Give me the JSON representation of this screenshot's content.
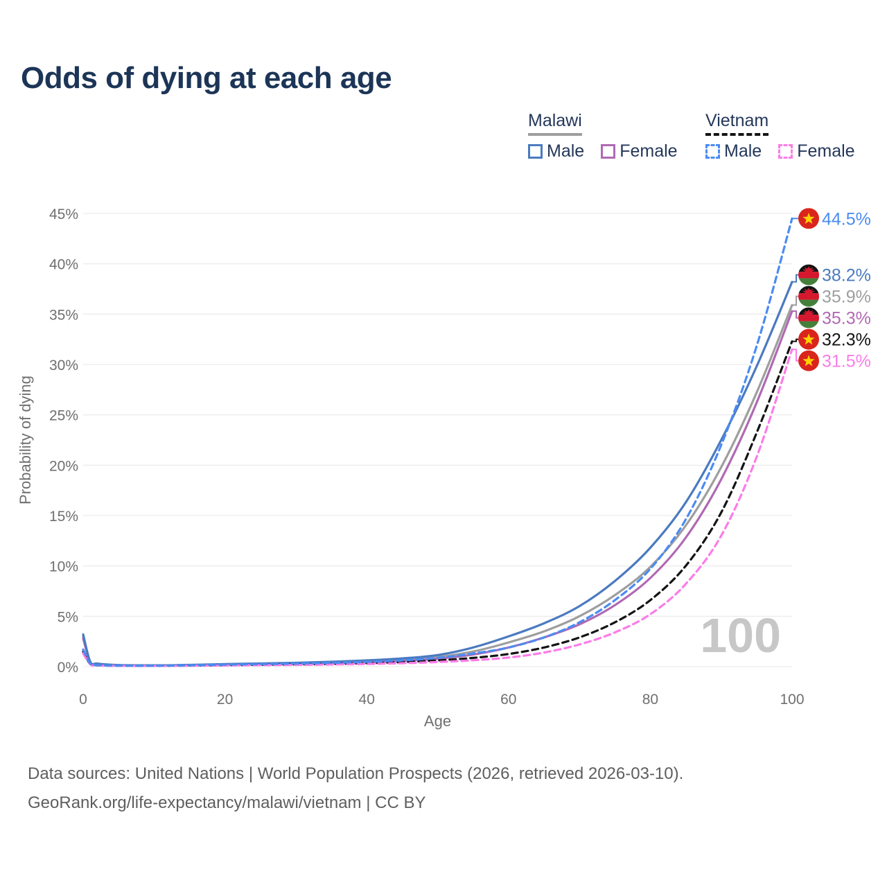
{
  "title": "Odds of dying at each age",
  "watermark": "100",
  "legend": {
    "groups": [
      {
        "country": "Malawi",
        "line_style": "solid",
        "underline_color": "#9e9e9e",
        "items": [
          {
            "label": "Male",
            "color": "#4a7ac0"
          },
          {
            "label": "Female",
            "color": "#b069b3"
          }
        ]
      },
      {
        "country": "Vietnam",
        "line_style": "dashed",
        "underline_color": "#141414",
        "items": [
          {
            "label": "Male",
            "color": "#4b8bf2"
          },
          {
            "label": "Female",
            "color": "#fb7ce8"
          }
        ]
      }
    ]
  },
  "footer": {
    "line1": "Data sources: United Nations | World Population Prospects (2026, retrieved 2026-03-10).",
    "line2": "GeoRank.org/life-expectancy/malawi/vietnam | CC BY"
  },
  "chart_data": {
    "type": "line",
    "title": "Odds of dying at each age",
    "xlabel": "Age",
    "ylabel": "Probability of dying",
    "xlim": [
      0,
      100
    ],
    "ylim": [
      0,
      45
    ],
    "x_ticks": [
      0,
      20,
      40,
      60,
      80,
      100
    ],
    "y_ticks": [
      0,
      5,
      10,
      15,
      20,
      25,
      30,
      35,
      40,
      45
    ],
    "y_tick_suffix": "%",
    "grid": true,
    "legend_position": "top-right",
    "x": [
      0,
      1,
      2,
      5,
      10,
      15,
      20,
      25,
      30,
      35,
      40,
      45,
      50,
      55,
      60,
      65,
      70,
      75,
      80,
      85,
      90,
      95,
      100
    ],
    "series": [
      {
        "name": "Malawi Both sexes",
        "country": "Malawi",
        "sex": "Both",
        "color": "#9e9e9e",
        "dash": "solid",
        "flag": "malawi",
        "end_label": "35.9%",
        "values": [
          3.0,
          0.46,
          0.27,
          0.14,
          0.11,
          0.14,
          0.21,
          0.27,
          0.33,
          0.41,
          0.52,
          0.68,
          0.95,
          1.5,
          2.4,
          3.5,
          5.0,
          7.1,
          9.9,
          14.0,
          19.8,
          27.2,
          35.9
        ]
      },
      {
        "name": "Malawi Female",
        "country": "Malawi",
        "sex": "Female",
        "color": "#b069b3",
        "dash": "solid",
        "flag": "malawi",
        "end_label": "35.3%",
        "values": [
          2.8,
          0.43,
          0.25,
          0.13,
          0.1,
          0.12,
          0.18,
          0.23,
          0.28,
          0.35,
          0.44,
          0.57,
          0.78,
          1.2,
          1.9,
          2.9,
          4.2,
          6.1,
          8.8,
          12.8,
          18.6,
          26.2,
          35.3
        ]
      },
      {
        "name": "Malawi Male",
        "country": "Malawi",
        "sex": "Male",
        "color": "#4a7ac0",
        "dash": "solid",
        "flag": "malawi",
        "end_label": "38.2%",
        "values": [
          3.2,
          0.5,
          0.3,
          0.16,
          0.13,
          0.17,
          0.25,
          0.31,
          0.38,
          0.48,
          0.62,
          0.82,
          1.15,
          1.9,
          3.0,
          4.3,
          6.0,
          8.5,
          11.8,
          16.3,
          22.5,
          29.8,
          38.2
        ]
      },
      {
        "name": "Vietnam Both sexes",
        "country": "Vietnam",
        "sex": "Both",
        "color": "#141414",
        "dash": "dashed",
        "flag": "vietnam",
        "end_label": "32.3%",
        "values": [
          1.5,
          0.27,
          0.13,
          0.09,
          0.08,
          0.1,
          0.14,
          0.18,
          0.22,
          0.27,
          0.34,
          0.45,
          0.62,
          0.87,
          1.25,
          1.9,
          2.9,
          4.4,
          6.6,
          10.0,
          15.3,
          23.2,
          32.3
        ]
      },
      {
        "name": "Vietnam Female",
        "country": "Vietnam",
        "sex": "Female",
        "color": "#fb7ce8",
        "dash": "dashed",
        "flag": "vietnam",
        "end_label": "31.5%",
        "values": [
          1.3,
          0.24,
          0.12,
          0.08,
          0.07,
          0.09,
          0.12,
          0.15,
          0.17,
          0.21,
          0.26,
          0.34,
          0.46,
          0.63,
          0.9,
          1.4,
          2.2,
          3.4,
          5.2,
          8.2,
          13.0,
          20.8,
          31.5
        ]
      },
      {
        "name": "Vietnam Male",
        "country": "Vietnam",
        "sex": "Male",
        "color": "#4b8bf2",
        "dash": "dashed",
        "flag": "vietnam",
        "end_label": "44.5%",
        "values": [
          1.7,
          0.3,
          0.15,
          0.1,
          0.09,
          0.13,
          0.19,
          0.25,
          0.3,
          0.37,
          0.47,
          0.62,
          0.87,
          1.3,
          1.9,
          2.9,
          4.4,
          6.6,
          9.7,
          14.6,
          22.0,
          31.8,
          44.5
        ]
      }
    ]
  }
}
